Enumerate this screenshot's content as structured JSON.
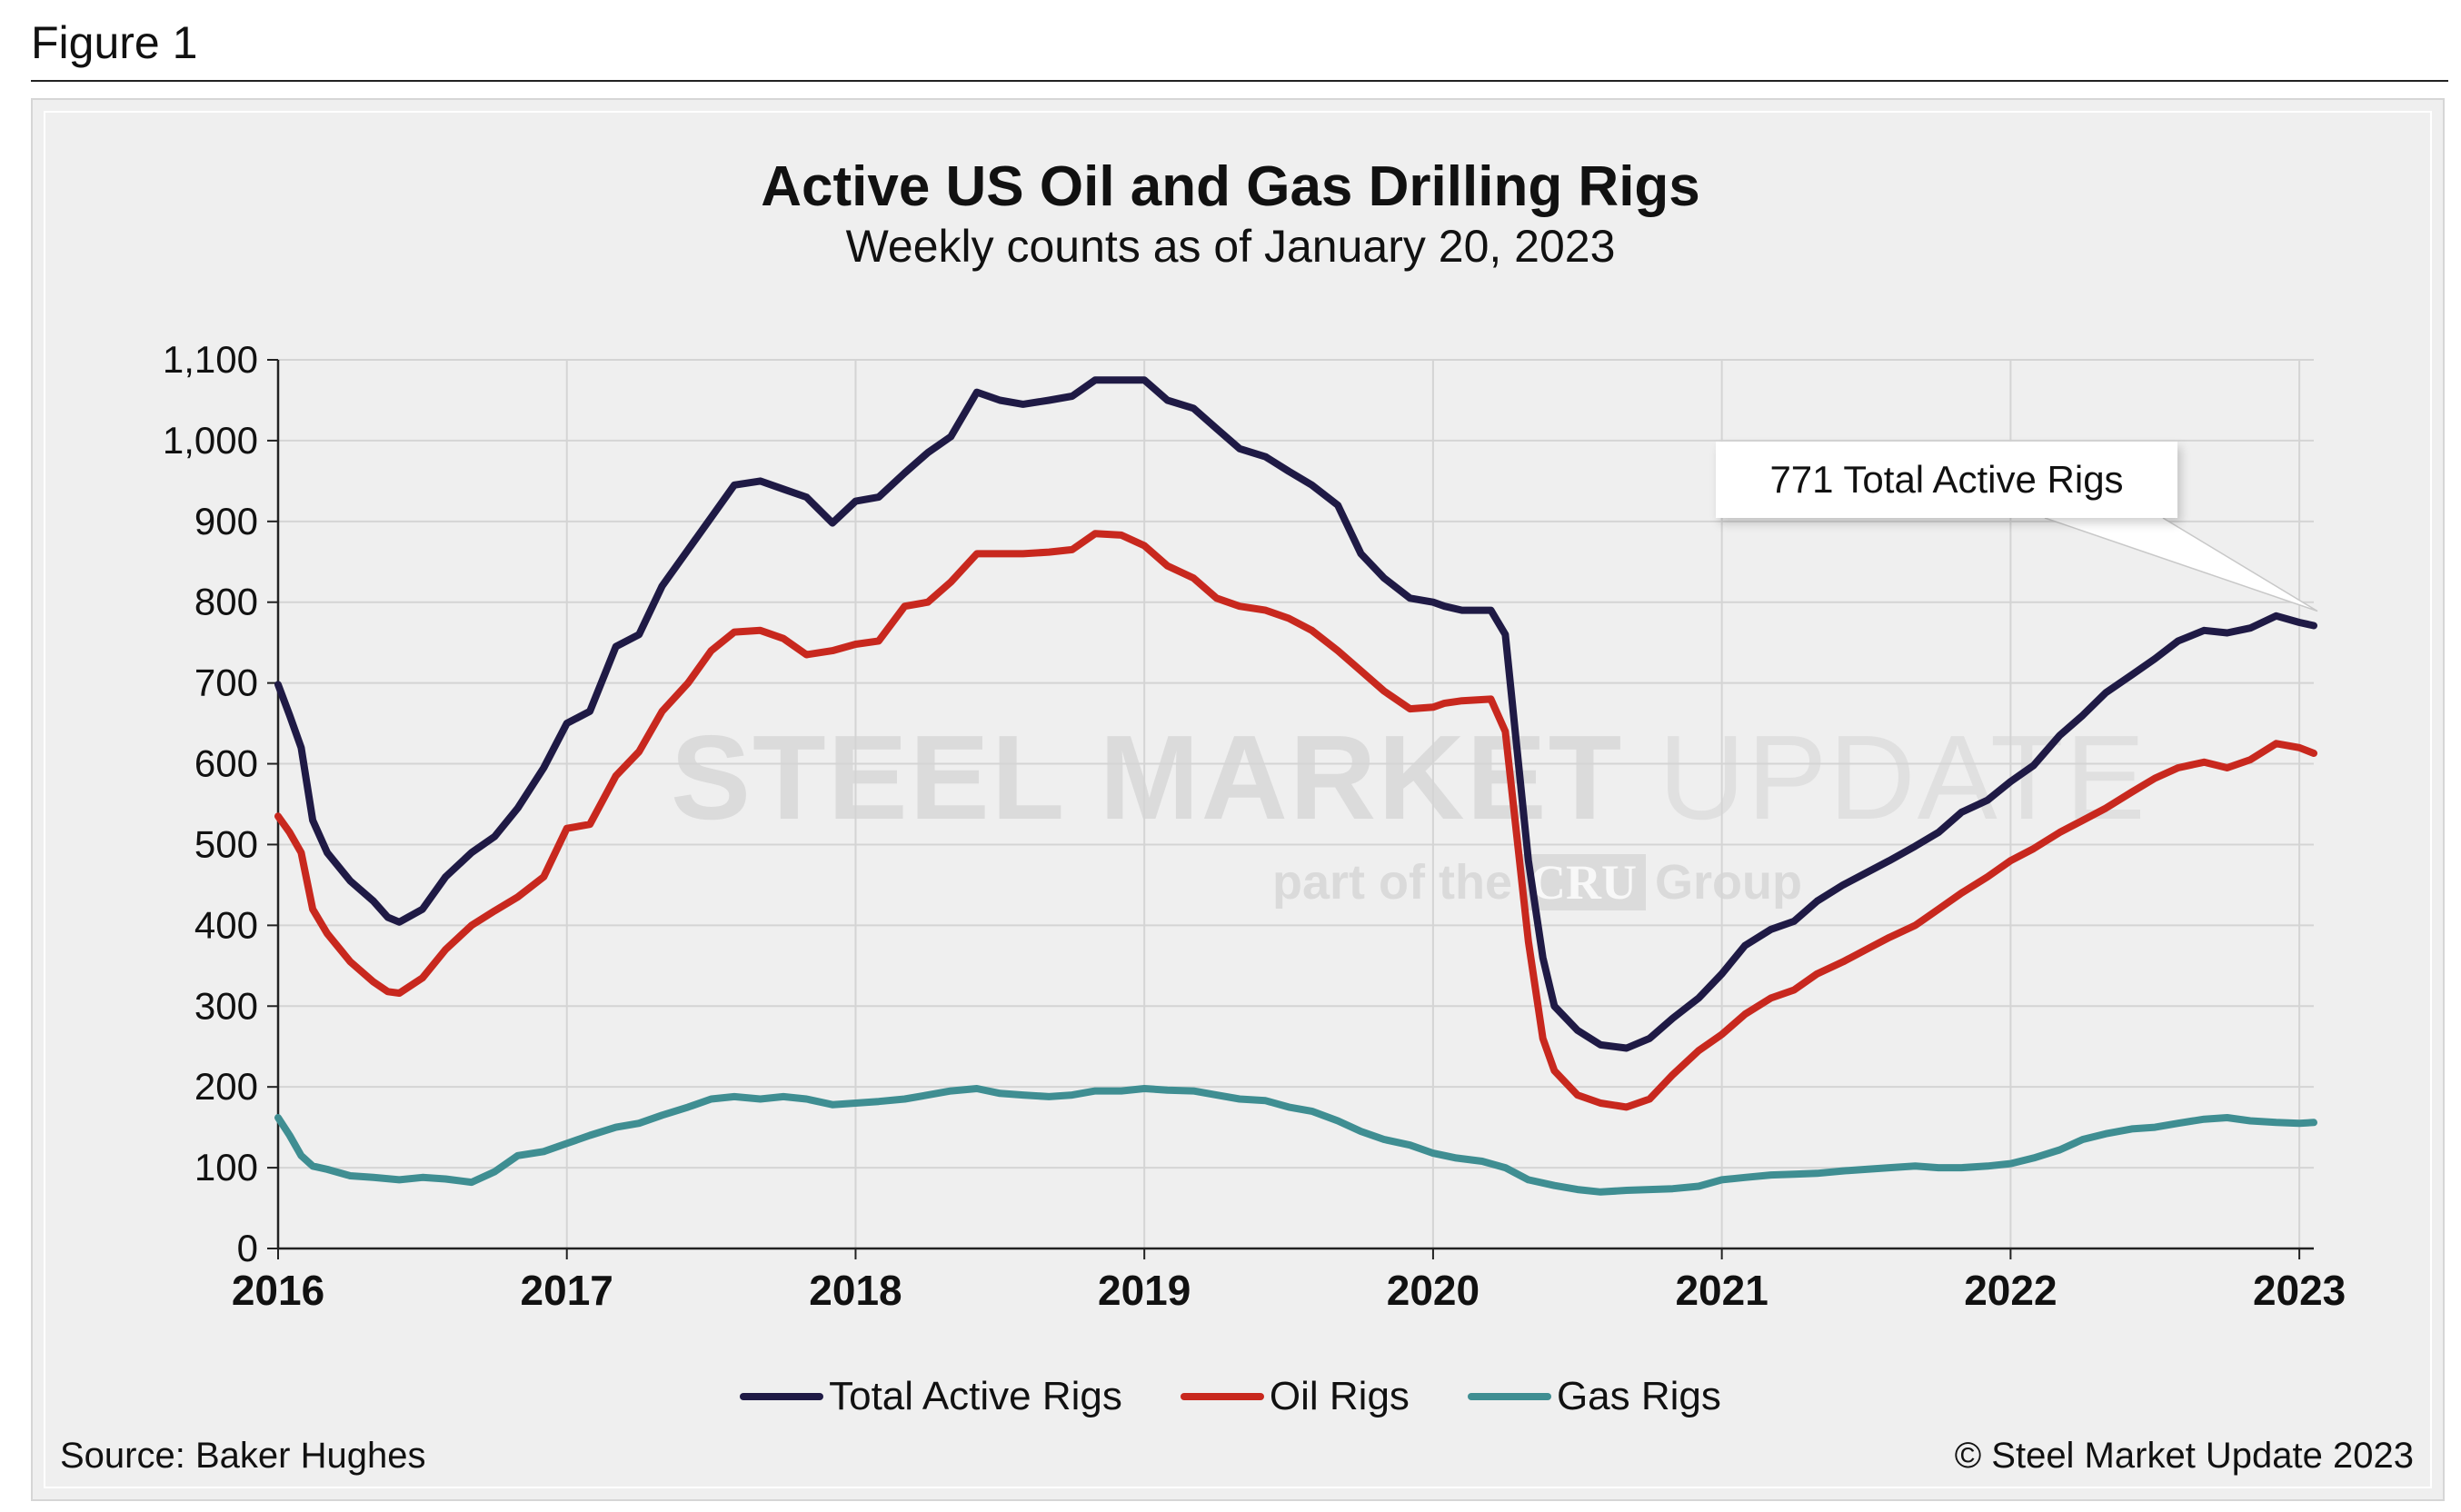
{
  "figure_label": "Figure 1",
  "source": "Source: Baker Hughes",
  "copyright": "© Steel Market Update 2023",
  "callout": "771 Total Active Rigs",
  "watermark": {
    "word1": "STEEL MARKET",
    "word2": "UPDATE",
    "sub_before": "part of the",
    "sub_brand": "CRU",
    "sub_after": "Group"
  },
  "colors": {
    "total": "#1f1a45",
    "oil": "#c8281e",
    "gas": "#3f8e92",
    "grid": "#d4d4d4",
    "axis": "#222222"
  },
  "chart_data": {
    "type": "line",
    "title": "Active US Oil and Gas Drilling Rigs",
    "subtitle": "Weekly counts as of January 20, 2023",
    "xlabel": "",
    "ylabel": "",
    "xlim": [
      2016.0,
      2023.05
    ],
    "ylim": [
      0,
      1100
    ],
    "ytick_values": [
      0,
      100,
      200,
      300,
      400,
      500,
      600,
      700,
      800,
      900,
      1000,
      1100
    ],
    "ytick_labels": [
      "0",
      "100",
      "200",
      "300",
      "400",
      "500",
      "600",
      "700",
      "800",
      "900",
      "1,000",
      "1,100"
    ],
    "xtick_values": [
      2016,
      2017,
      2018,
      2019,
      2020,
      2021,
      2022,
      2023
    ],
    "xtick_labels": [
      "2016",
      "2017",
      "2018",
      "2019",
      "2020",
      "2021",
      "2022",
      "2023"
    ],
    "grid": true,
    "legend_position": "bottom-center",
    "series": [
      {
        "name": "Total Active Rigs",
        "color": "#1f1a45",
        "points": [
          [
            2016.0,
            698
          ],
          [
            2016.04,
            660
          ],
          [
            2016.08,
            620
          ],
          [
            2016.12,
            530
          ],
          [
            2016.17,
            490
          ],
          [
            2016.25,
            455
          ],
          [
            2016.33,
            430
          ],
          [
            2016.38,
            410
          ],
          [
            2016.42,
            404
          ],
          [
            2016.5,
            420
          ],
          [
            2016.58,
            460
          ],
          [
            2016.67,
            490
          ],
          [
            2016.75,
            510
          ],
          [
            2016.83,
            545
          ],
          [
            2016.92,
            595
          ],
          [
            2017.0,
            650
          ],
          [
            2017.08,
            665
          ],
          [
            2017.17,
            745
          ],
          [
            2017.25,
            760
          ],
          [
            2017.33,
            820
          ],
          [
            2017.42,
            865
          ],
          [
            2017.5,
            905
          ],
          [
            2017.58,
            945
          ],
          [
            2017.67,
            950
          ],
          [
            2017.75,
            940
          ],
          [
            2017.83,
            930
          ],
          [
            2017.92,
            898
          ],
          [
            2018.0,
            925
          ],
          [
            2018.08,
            930
          ],
          [
            2018.17,
            960
          ],
          [
            2018.25,
            985
          ],
          [
            2018.33,
            1005
          ],
          [
            2018.42,
            1060
          ],
          [
            2018.5,
            1050
          ],
          [
            2018.58,
            1045
          ],
          [
            2018.67,
            1050
          ],
          [
            2018.75,
            1055
          ],
          [
            2018.83,
            1075
          ],
          [
            2018.92,
            1075
          ],
          [
            2019.0,
            1075
          ],
          [
            2019.08,
            1050
          ],
          [
            2019.17,
            1040
          ],
          [
            2019.25,
            1015
          ],
          [
            2019.33,
            990
          ],
          [
            2019.42,
            980
          ],
          [
            2019.5,
            962
          ],
          [
            2019.58,
            945
          ],
          [
            2019.67,
            920
          ],
          [
            2019.75,
            860
          ],
          [
            2019.83,
            830
          ],
          [
            2019.92,
            805
          ],
          [
            2020.0,
            800
          ],
          [
            2020.04,
            795
          ],
          [
            2020.1,
            790
          ],
          [
            2020.2,
            790
          ],
          [
            2020.25,
            760
          ],
          [
            2020.29,
            620
          ],
          [
            2020.33,
            480
          ],
          [
            2020.38,
            360
          ],
          [
            2020.42,
            300
          ],
          [
            2020.5,
            270
          ],
          [
            2020.58,
            252
          ],
          [
            2020.67,
            248
          ],
          [
            2020.75,
            260
          ],
          [
            2020.83,
            285
          ],
          [
            2020.92,
            310
          ],
          [
            2021.0,
            340
          ],
          [
            2021.08,
            375
          ],
          [
            2021.17,
            395
          ],
          [
            2021.25,
            405
          ],
          [
            2021.33,
            430
          ],
          [
            2021.42,
            450
          ],
          [
            2021.5,
            465
          ],
          [
            2021.58,
            480
          ],
          [
            2021.67,
            498
          ],
          [
            2021.75,
            515
          ],
          [
            2021.83,
            540
          ],
          [
            2021.92,
            555
          ],
          [
            2022.0,
            578
          ],
          [
            2022.08,
            598
          ],
          [
            2022.17,
            635
          ],
          [
            2022.25,
            660
          ],
          [
            2022.33,
            688
          ],
          [
            2022.42,
            710
          ],
          [
            2022.5,
            730
          ],
          [
            2022.58,
            752
          ],
          [
            2022.67,
            765
          ],
          [
            2022.75,
            762
          ],
          [
            2022.83,
            768
          ],
          [
            2022.92,
            783
          ],
          [
            2023.0,
            775
          ],
          [
            2023.05,
            771
          ]
        ]
      },
      {
        "name": "Oil Rigs",
        "color": "#c8281e",
        "points": [
          [
            2016.0,
            535
          ],
          [
            2016.04,
            515
          ],
          [
            2016.08,
            490
          ],
          [
            2016.12,
            420
          ],
          [
            2016.17,
            390
          ],
          [
            2016.25,
            355
          ],
          [
            2016.33,
            330
          ],
          [
            2016.38,
            318
          ],
          [
            2016.42,
            316
          ],
          [
            2016.5,
            335
          ],
          [
            2016.58,
            370
          ],
          [
            2016.67,
            400
          ],
          [
            2016.75,
            418
          ],
          [
            2016.83,
            435
          ],
          [
            2016.92,
            460
          ],
          [
            2017.0,
            520
          ],
          [
            2017.08,
            525
          ],
          [
            2017.17,
            585
          ],
          [
            2017.25,
            615
          ],
          [
            2017.33,
            665
          ],
          [
            2017.42,
            700
          ],
          [
            2017.5,
            740
          ],
          [
            2017.58,
            763
          ],
          [
            2017.67,
            765
          ],
          [
            2017.75,
            755
          ],
          [
            2017.83,
            735
          ],
          [
            2017.92,
            740
          ],
          [
            2018.0,
            748
          ],
          [
            2018.08,
            752
          ],
          [
            2018.17,
            795
          ],
          [
            2018.25,
            800
          ],
          [
            2018.33,
            825
          ],
          [
            2018.42,
            860
          ],
          [
            2018.5,
            860
          ],
          [
            2018.58,
            860
          ],
          [
            2018.67,
            862
          ],
          [
            2018.75,
            865
          ],
          [
            2018.83,
            885
          ],
          [
            2018.92,
            883
          ],
          [
            2019.0,
            870
          ],
          [
            2019.08,
            845
          ],
          [
            2019.17,
            830
          ],
          [
            2019.25,
            805
          ],
          [
            2019.33,
            795
          ],
          [
            2019.42,
            790
          ],
          [
            2019.5,
            780
          ],
          [
            2019.58,
            765
          ],
          [
            2019.67,
            740
          ],
          [
            2019.75,
            715
          ],
          [
            2019.83,
            690
          ],
          [
            2019.92,
            668
          ],
          [
            2020.0,
            670
          ],
          [
            2020.04,
            675
          ],
          [
            2020.1,
            678
          ],
          [
            2020.2,
            680
          ],
          [
            2020.25,
            640
          ],
          [
            2020.29,
            510
          ],
          [
            2020.33,
            380
          ],
          [
            2020.38,
            260
          ],
          [
            2020.42,
            220
          ],
          [
            2020.5,
            190
          ],
          [
            2020.58,
            180
          ],
          [
            2020.67,
            175
          ],
          [
            2020.75,
            185
          ],
          [
            2020.83,
            215
          ],
          [
            2020.92,
            245
          ],
          [
            2021.0,
            265
          ],
          [
            2021.08,
            290
          ],
          [
            2021.17,
            310
          ],
          [
            2021.25,
            320
          ],
          [
            2021.33,
            340
          ],
          [
            2021.42,
            355
          ],
          [
            2021.5,
            370
          ],
          [
            2021.58,
            385
          ],
          [
            2021.67,
            400
          ],
          [
            2021.75,
            420
          ],
          [
            2021.83,
            440
          ],
          [
            2021.92,
            460
          ],
          [
            2022.0,
            480
          ],
          [
            2022.08,
            495
          ],
          [
            2022.17,
            515
          ],
          [
            2022.25,
            530
          ],
          [
            2022.33,
            545
          ],
          [
            2022.42,
            565
          ],
          [
            2022.5,
            582
          ],
          [
            2022.58,
            595
          ],
          [
            2022.67,
            602
          ],
          [
            2022.75,
            595
          ],
          [
            2022.83,
            605
          ],
          [
            2022.92,
            625
          ],
          [
            2023.0,
            620
          ],
          [
            2023.05,
            613
          ]
        ]
      },
      {
        "name": "Gas Rigs",
        "color": "#3f8e92",
        "points": [
          [
            2016.0,
            162
          ],
          [
            2016.04,
            140
          ],
          [
            2016.08,
            115
          ],
          [
            2016.12,
            102
          ],
          [
            2016.17,
            98
          ],
          [
            2016.25,
            90
          ],
          [
            2016.33,
            88
          ],
          [
            2016.42,
            85
          ],
          [
            2016.5,
            88
          ],
          [
            2016.58,
            86
          ],
          [
            2016.67,
            82
          ],
          [
            2016.75,
            95
          ],
          [
            2016.83,
            115
          ],
          [
            2016.92,
            120
          ],
          [
            2017.0,
            130
          ],
          [
            2017.08,
            140
          ],
          [
            2017.17,
            150
          ],
          [
            2017.25,
            155
          ],
          [
            2017.33,
            165
          ],
          [
            2017.42,
            175
          ],
          [
            2017.5,
            185
          ],
          [
            2017.58,
            188
          ],
          [
            2017.67,
            185
          ],
          [
            2017.75,
            188
          ],
          [
            2017.83,
            185
          ],
          [
            2017.92,
            178
          ],
          [
            2018.0,
            180
          ],
          [
            2018.08,
            182
          ],
          [
            2018.17,
            185
          ],
          [
            2018.25,
            190
          ],
          [
            2018.33,
            195
          ],
          [
            2018.42,
            198
          ],
          [
            2018.5,
            192
          ],
          [
            2018.58,
            190
          ],
          [
            2018.67,
            188
          ],
          [
            2018.75,
            190
          ],
          [
            2018.83,
            195
          ],
          [
            2018.92,
            195
          ],
          [
            2019.0,
            198
          ],
          [
            2019.08,
            196
          ],
          [
            2019.17,
            195
          ],
          [
            2019.25,
            190
          ],
          [
            2019.33,
            185
          ],
          [
            2019.42,
            183
          ],
          [
            2019.5,
            175
          ],
          [
            2019.58,
            170
          ],
          [
            2019.67,
            158
          ],
          [
            2019.75,
            145
          ],
          [
            2019.83,
            135
          ],
          [
            2019.92,
            128
          ],
          [
            2020.0,
            118
          ],
          [
            2020.08,
            112
          ],
          [
            2020.17,
            108
          ],
          [
            2020.25,
            100
          ],
          [
            2020.33,
            85
          ],
          [
            2020.42,
            78
          ],
          [
            2020.5,
            73
          ],
          [
            2020.58,
            70
          ],
          [
            2020.67,
            72
          ],
          [
            2020.75,
            73
          ],
          [
            2020.83,
            74
          ],
          [
            2020.92,
            77
          ],
          [
            2021.0,
            85
          ],
          [
            2021.08,
            88
          ],
          [
            2021.17,
            91
          ],
          [
            2021.25,
            92
          ],
          [
            2021.33,
            93
          ],
          [
            2021.42,
            96
          ],
          [
            2021.5,
            98
          ],
          [
            2021.58,
            100
          ],
          [
            2021.67,
            102
          ],
          [
            2021.75,
            100
          ],
          [
            2021.83,
            100
          ],
          [
            2021.92,
            102
          ],
          [
            2022.0,
            105
          ],
          [
            2022.08,
            112
          ],
          [
            2022.17,
            122
          ],
          [
            2022.25,
            135
          ],
          [
            2022.33,
            142
          ],
          [
            2022.42,
            148
          ],
          [
            2022.5,
            150
          ],
          [
            2022.58,
            155
          ],
          [
            2022.67,
            160
          ],
          [
            2022.75,
            162
          ],
          [
            2022.83,
            158
          ],
          [
            2022.92,
            156
          ],
          [
            2023.0,
            155
          ],
          [
            2023.05,
            156
          ]
        ]
      }
    ]
  }
}
